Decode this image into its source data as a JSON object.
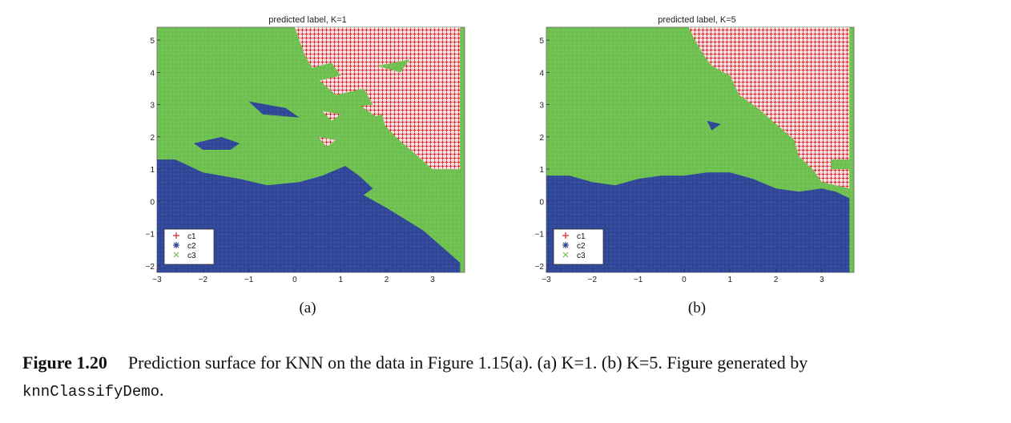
{
  "colors": {
    "c1": "#e0202a",
    "c2": "#2f4594",
    "c3": "#6cbf4f"
  },
  "chart_data": [
    {
      "type": "heatmap",
      "title": "predicted label,  K=1",
      "subcaption": "(a)",
      "x_ticks": [
        "−3",
        "−2",
        "−1",
        "0",
        "1",
        "2",
        "3"
      ],
      "y_ticks": [
        "−2",
        "−1",
        "0",
        "1",
        "2",
        "3",
        "4",
        "5"
      ],
      "xlim": [
        -3,
        3.7
      ],
      "ylim": [
        -2.2,
        5.4
      ],
      "grid": false,
      "legend_position": "bottom-left",
      "legend": [
        "c1",
        "c2",
        "c3"
      ],
      "regions": {
        "c1": [
          [
            0.0,
            5.4
          ],
          [
            3.6,
            5.4
          ],
          [
            3.6,
            1.0
          ],
          [
            3.0,
            1.0
          ],
          [
            2.6,
            1.5
          ],
          [
            2.2,
            2.0
          ],
          [
            1.8,
            2.6
          ],
          [
            1.4,
            3.0
          ],
          [
            0.9,
            3.3
          ],
          [
            0.5,
            3.8
          ],
          [
            0.2,
            4.6
          ]
        ],
        "c2": [
          [
            -3.0,
            1.3
          ],
          [
            -2.6,
            1.3
          ],
          [
            -2.0,
            0.9
          ],
          [
            -1.2,
            0.7
          ],
          [
            -0.6,
            0.5
          ],
          [
            0.1,
            0.6
          ],
          [
            0.6,
            0.8
          ],
          [
            1.1,
            1.1
          ],
          [
            1.4,
            0.8
          ],
          [
            1.7,
            0.4
          ],
          [
            1.5,
            0.2
          ],
          [
            2.0,
            -0.2
          ],
          [
            2.8,
            -0.9
          ],
          [
            3.6,
            -1.9
          ],
          [
            3.6,
            -2.2
          ],
          [
            -3.0,
            -2.2
          ]
        ]
      },
      "patches": {
        "c2": [
          [
            [
              -2.2,
              1.8
            ],
            [
              -1.6,
              2.0
            ],
            [
              -1.2,
              1.8
            ],
            [
              -1.4,
              1.6
            ],
            [
              -2.0,
              1.6
            ]
          ],
          [
            [
              -1.0,
              3.1
            ],
            [
              -0.2,
              2.9
            ],
            [
              0.1,
              2.6
            ],
            [
              -0.7,
              2.7
            ]
          ],
          [
            [
              0.9,
              0.0
            ],
            [
              1.4,
              -0.3
            ],
            [
              1.6,
              -0.7
            ],
            [
              1.1,
              -0.4
            ]
          ],
          [
            [
              -0.2,
              0.5
            ],
            [
              0.3,
              0.4
            ],
            [
              0.1,
              0.2
            ]
          ]
        ],
        "c3": [
          [
            [
              0.0,
              4.0
            ],
            [
              0.8,
              4.3
            ],
            [
              1.0,
              3.9
            ],
            [
              0.4,
              3.7
            ]
          ],
          [
            [
              1.8,
              4.2
            ],
            [
              2.5,
              4.4
            ],
            [
              2.3,
              4.0
            ]
          ],
          [
            [
              0.9,
              3.3
            ],
            [
              1.5,
              3.5
            ],
            [
              1.7,
              3.0
            ],
            [
              1.1,
              2.9
            ]
          ],
          [
            [
              1.2,
              2.4
            ],
            [
              1.9,
              2.7
            ],
            [
              2.0,
              2.2
            ]
          ]
        ],
        "c1": [
          [
            [
              0.6,
              2.8
            ],
            [
              1.0,
              2.7
            ],
            [
              0.8,
              2.5
            ]
          ],
          [
            [
              0.5,
              2.0
            ],
            [
              0.9,
              1.9
            ],
            [
              0.7,
              1.7
            ]
          ]
        ]
      }
    },
    {
      "type": "heatmap",
      "title": "predicted label,  K=5",
      "subcaption": "(b)",
      "x_ticks": [
        "−3",
        "−2",
        "−1",
        "0",
        "1",
        "2",
        "3"
      ],
      "y_ticks": [
        "−2",
        "−1",
        "0",
        "1",
        "2",
        "3",
        "4",
        "5"
      ],
      "xlim": [
        -3,
        3.7
      ],
      "ylim": [
        -2.2,
        5.4
      ],
      "grid": false,
      "legend_position": "bottom-left",
      "legend": [
        "c1",
        "c2",
        "c3"
      ],
      "regions": {
        "c1": [
          [
            1.2,
            5.4
          ],
          [
            3.6,
            5.4
          ],
          [
            3.6,
            0.4
          ],
          [
            3.0,
            0.6
          ],
          [
            2.8,
            1.0
          ],
          [
            2.5,
            1.4
          ],
          [
            2.4,
            1.9
          ],
          [
            2.0,
            2.4
          ],
          [
            1.6,
            2.9
          ],
          [
            1.2,
            3.3
          ],
          [
            1.0,
            3.9
          ],
          [
            0.6,
            4.2
          ],
          [
            0.4,
            4.6
          ],
          [
            0.2,
            5.1
          ],
          [
            0.1,
            5.4
          ]
        ],
        "c2": [
          [
            -3.0,
            0.8
          ],
          [
            -2.5,
            0.8
          ],
          [
            -2.0,
            0.6
          ],
          [
            -1.5,
            0.5
          ],
          [
            -1.0,
            0.7
          ],
          [
            -0.5,
            0.8
          ],
          [
            0.0,
            0.8
          ],
          [
            0.5,
            0.9
          ],
          [
            1.0,
            0.9
          ],
          [
            1.5,
            0.7
          ],
          [
            2.0,
            0.4
          ],
          [
            2.5,
            0.3
          ],
          [
            3.0,
            0.4
          ],
          [
            3.3,
            0.3
          ],
          [
            3.6,
            0.1
          ],
          [
            3.6,
            -2.2
          ],
          [
            -3.0,
            -2.2
          ]
        ]
      },
      "patches": {
        "c2": [
          [
            [
              -0.3,
              0.6
            ],
            [
              0.1,
              0.6
            ],
            [
              -0.1,
              0.3
            ]
          ],
          [
            [
              0.5,
              2.5
            ],
            [
              0.8,
              2.4
            ],
            [
              0.6,
              2.2
            ]
          ]
        ],
        "c3": [
          [
            [
              3.2,
              1.3
            ],
            [
              3.6,
              1.3
            ],
            [
              3.6,
              1.0
            ],
            [
              3.2,
              1.0
            ]
          ]
        ]
      }
    }
  ],
  "caption": {
    "label": "Figure 1.20",
    "text": "Prediction surface for KNN on the data in Figure 1.15(a). (a) K=1. (b) K=5. Figure generated by",
    "code": "knnClassifyDemo",
    "end": "."
  }
}
